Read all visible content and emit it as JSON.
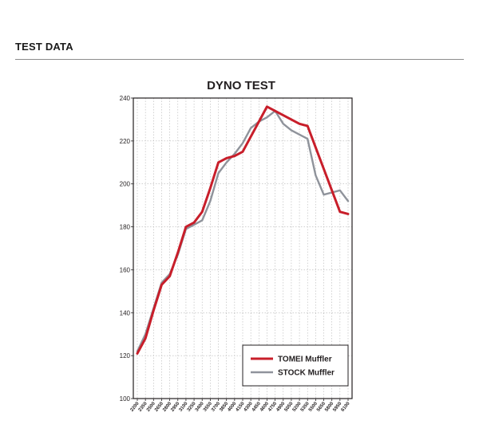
{
  "section": {
    "heading": "TEST DATA"
  },
  "colors": {
    "tomei": "#c81e2a",
    "stock": "#8f939b",
    "frame": "#231f20",
    "grid": "#b5b5b5"
  },
  "chart_data": {
    "type": "line",
    "title": "DYNO TEST",
    "xlabel": "",
    "ylabel": "",
    "categories": [
      "2200",
      "2350",
      "2500",
      "2650",
      "2800",
      "2950",
      "3100",
      "3250",
      "3400",
      "3550",
      "3700",
      "3850",
      "4000",
      "4150",
      "4300",
      "4450",
      "4600",
      "4750",
      "4900",
      "5050",
      "5200",
      "5350",
      "5500",
      "5650",
      "5800",
      "5950",
      "6100"
    ],
    "ylim": [
      100,
      240
    ],
    "yticks": [
      100,
      120,
      140,
      160,
      180,
      200,
      220,
      240
    ],
    "grid": true,
    "legend_position": "bottom-right",
    "series": [
      {
        "name": "TOMEI Muffler",
        "color": "#c81e2a",
        "values": [
          121,
          128,
          141,
          153,
          157,
          168,
          180,
          182,
          187,
          198,
          210,
          212,
          213,
          215,
          222,
          229,
          236,
          234,
          232,
          230,
          228,
          227,
          217,
          207,
          197,
          187,
          186
        ]
      },
      {
        "name": "STOCK Muffler",
        "color": "#8f939b",
        "values": [
          122,
          130,
          142,
          154,
          158,
          167,
          179,
          181,
          183,
          192,
          205,
          210,
          214,
          219,
          226,
          229,
          231,
          234,
          228,
          225,
          223,
          221,
          204,
          195,
          196,
          197,
          192
        ]
      }
    ]
  }
}
